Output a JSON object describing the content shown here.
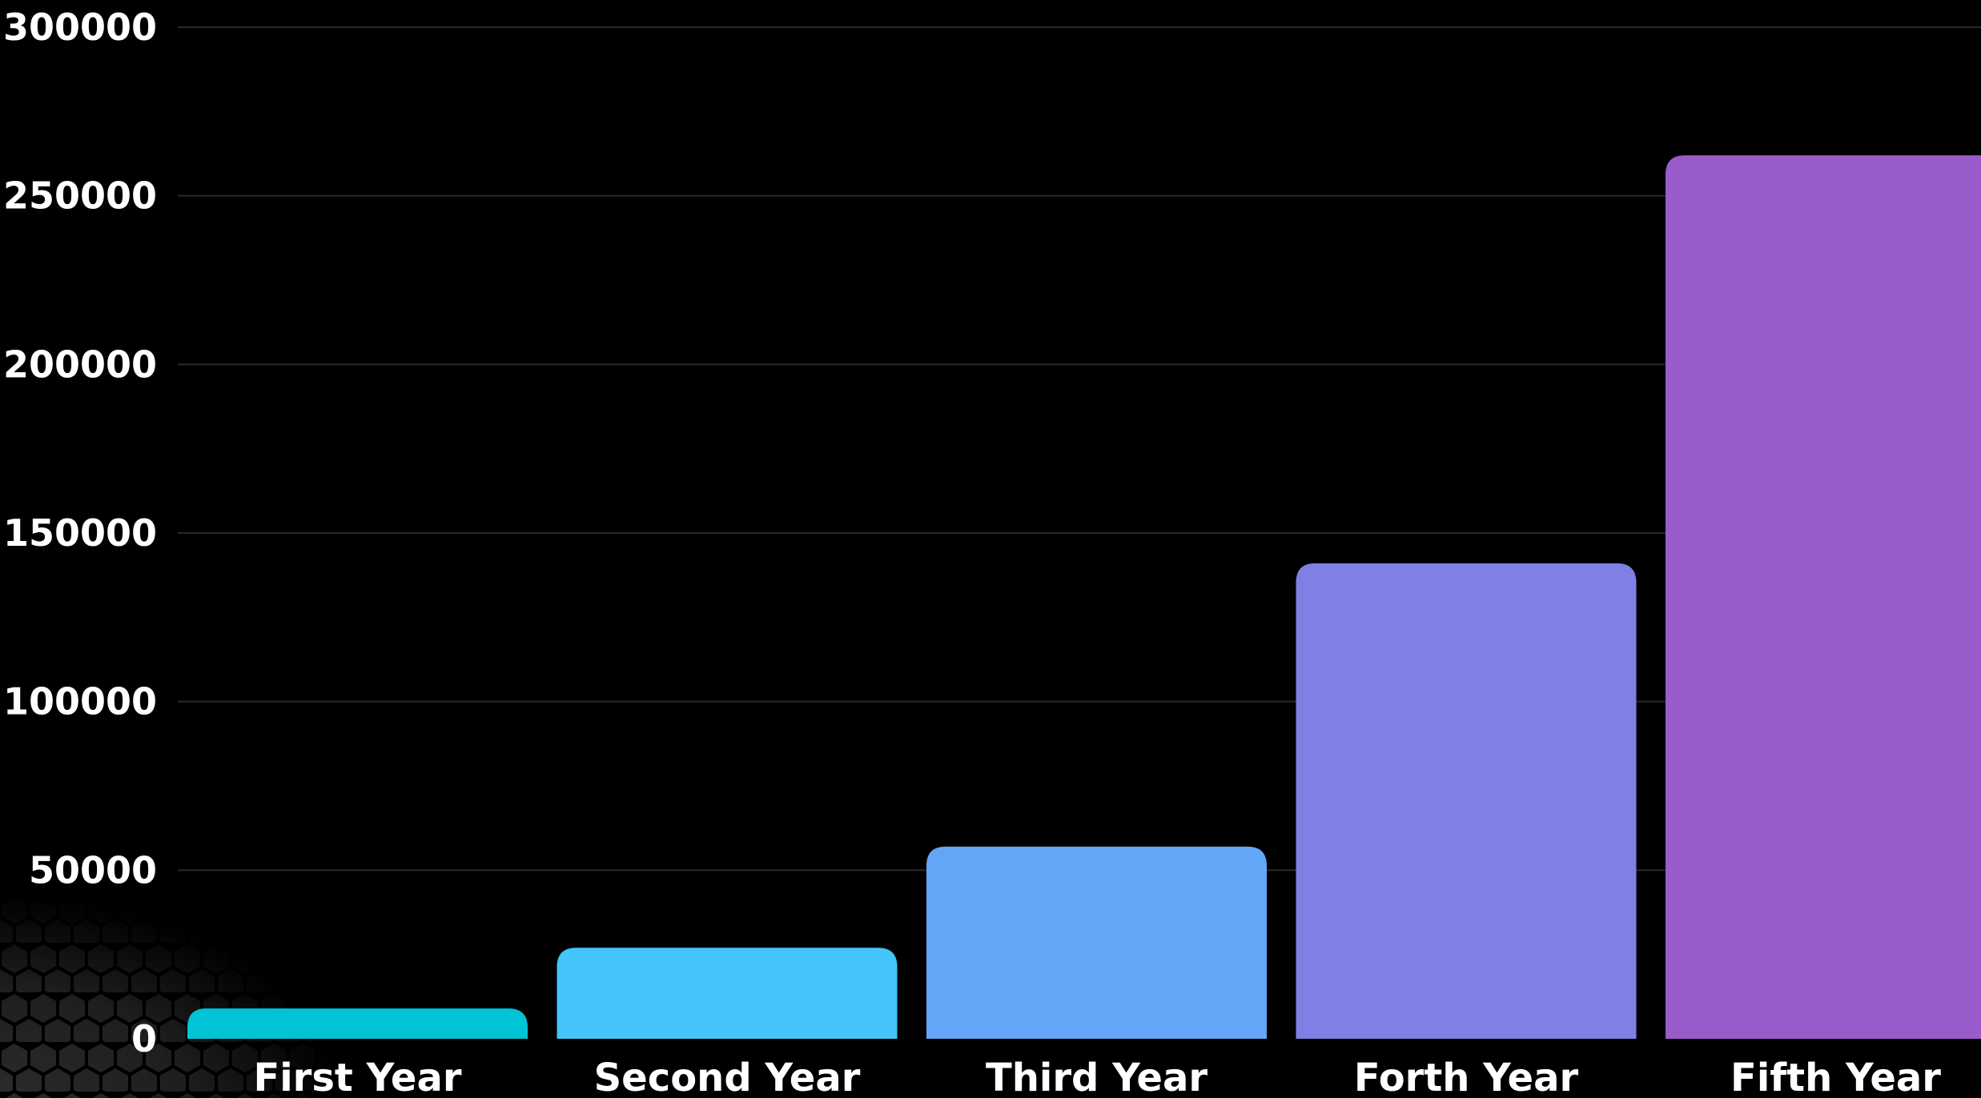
{
  "chart_data": {
    "type": "bar",
    "categories": [
      "First Year",
      "Second Year",
      "Third Year",
      "Forth Year",
      "Fifth Year"
    ],
    "values": [
      9000,
      27000,
      57000,
      141000,
      262000
    ],
    "colors": [
      "#00c4d6",
      "#45c4fb",
      "#63a6f8",
      "#7e80e4",
      "#9a5bcb"
    ],
    "ylim": [
      0,
      300000
    ],
    "yticks": [
      "0",
      "50000",
      "100000",
      "150000",
      "200000",
      "250000",
      "300000"
    ],
    "grid": true,
    "background": "#000000",
    "decoration": "hexagon-pattern"
  }
}
